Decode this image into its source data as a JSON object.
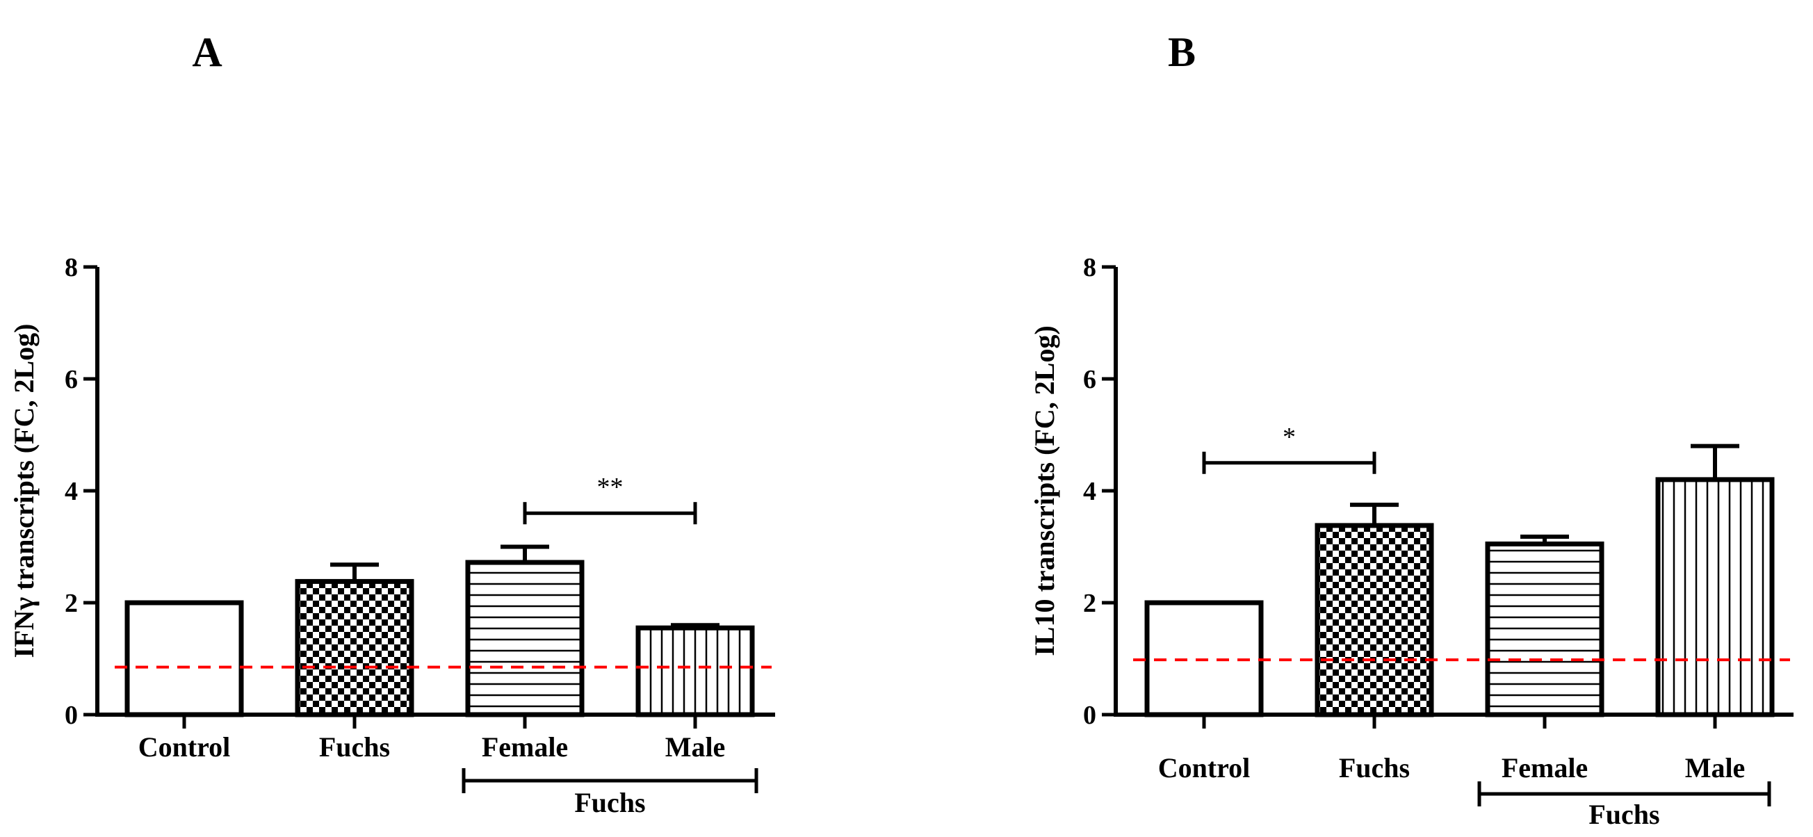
{
  "chart_data": [
    {
      "type": "bar",
      "panel_label": "A",
      "ylabel": "IFNγ transcripts (FC, 2Log)",
      "ylim": [
        0,
        8
      ],
      "yticks": [
        "0",
        "2",
        "4",
        "6",
        "8"
      ],
      "categories": [
        "Control",
        "Fuchs",
        "Female",
        "Male"
      ],
      "values": [
        2.0,
        2.38,
        2.72,
        1.55
      ],
      "error_upper": [
        2.0,
        2.68,
        3.0,
        1.6
      ],
      "patterns": [
        "none",
        "checker",
        "horizontal",
        "vertical"
      ],
      "group_bracket": {
        "label": "Fuchs",
        "from": 2,
        "to": 3
      },
      "significance": [
        {
          "from": 2,
          "to": 3,
          "y": 3.6,
          "label": "**"
        }
      ],
      "reference_line": {
        "y": 0.85,
        "color": "#ff0000",
        "style": "dashed"
      }
    },
    {
      "type": "bar",
      "panel_label": "B",
      "ylabel": "IL10 transcripts (FC, 2Log)",
      "ylim": [
        0,
        8
      ],
      "yticks": [
        "0",
        "2",
        "4",
        "6",
        "8"
      ],
      "categories": [
        "Control",
        "Fuchs",
        "Female",
        "Male"
      ],
      "values": [
        2.0,
        3.38,
        3.05,
        4.2
      ],
      "error_upper": [
        2.0,
        3.75,
        3.18,
        4.8
      ],
      "patterns": [
        "none",
        "checker",
        "horizontal",
        "vertical"
      ],
      "group_bracket": {
        "label": "Fuchs",
        "from": 2,
        "to": 3
      },
      "significance": [
        {
          "from": 0,
          "to": 1,
          "y": 4.5,
          "label": "*"
        }
      ],
      "reference_line": {
        "y": 0.98,
        "color": "#ff0000",
        "style": "dashed"
      }
    }
  ]
}
